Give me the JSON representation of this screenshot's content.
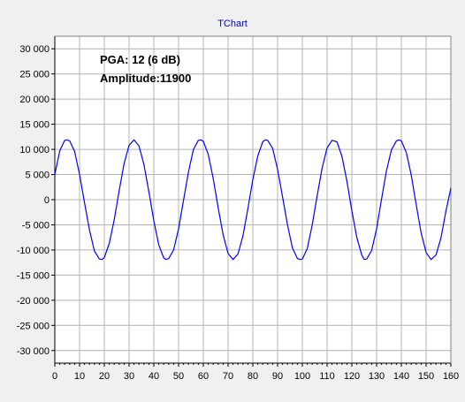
{
  "chart_data": {
    "type": "line",
    "title": "TChart",
    "annotations": [
      "PGA: 12 (6 dB)",
      "Amplitude:11900"
    ],
    "xlabel": "",
    "ylabel": "",
    "xlim": [
      0,
      160
    ],
    "ylim": [
      -32500,
      32500
    ],
    "x_ticks": [
      0,
      10,
      20,
      30,
      40,
      50,
      60,
      70,
      80,
      90,
      100,
      110,
      120,
      130,
      140,
      150,
      160
    ],
    "x_tick_labels": [
      "0",
      "10",
      "20",
      "30",
      "40",
      "50",
      "60",
      "70",
      "80",
      "90",
      "100",
      "110",
      "120",
      "130",
      "140",
      "150",
      "160"
    ],
    "y_ticks": [
      30000,
      25000,
      20000,
      15000,
      10000,
      5000,
      0,
      -5000,
      -10000,
      -15000,
      -20000,
      -25000,
      -30000
    ],
    "y_tick_labels": [
      "30 000",
      "25 000",
      "20 000",
      "15 000",
      "10 000",
      "5 000",
      "0",
      "-5 000",
      "-10 000",
      "-15 000",
      "-20 000",
      "-25 000",
      "-30 000"
    ],
    "grid": true,
    "legend": "none",
    "series": [
      {
        "color": "#0000ff",
        "x": [
          0,
          2,
          4,
          5,
          6,
          8,
          10,
          12,
          14,
          16,
          18,
          19,
          20,
          22,
          24,
          26,
          28,
          30,
          32,
          34,
          36,
          38,
          40,
          42,
          44,
          45,
          46,
          48,
          50,
          52,
          54,
          56,
          58,
          59,
          60,
          62,
          64,
          66,
          68,
          70,
          72,
          74,
          76,
          78,
          80,
          82,
          84,
          85,
          86,
          88,
          90,
          92,
          94,
          96,
          98,
          99,
          100,
          102,
          104,
          106,
          108,
          110,
          112,
          114,
          116,
          118,
          120,
          122,
          124,
          125,
          126,
          128,
          130,
          132,
          134,
          136,
          138,
          139,
          140,
          142,
          144,
          146,
          148,
          150,
          152,
          154,
          156,
          158,
          160
        ],
        "y": [
          5000,
          9700,
          11800,
          11900,
          11700,
          9600,
          5000,
          -600,
          -6000,
          -10200,
          -11800,
          -11900,
          -11500,
          -8700,
          -4000,
          1800,
          7200,
          10800,
          11900,
          10700,
          7000,
          1600,
          -4200,
          -9000,
          -11600,
          -11900,
          -11700,
          -10000,
          -5800,
          -100,
          5500,
          10000,
          11800,
          11900,
          11600,
          9000,
          4200,
          -1600,
          -7000,
          -10700,
          -11900,
          -10800,
          -7200,
          -1800,
          4000,
          8700,
          11500,
          11900,
          11800,
          10200,
          6000,
          600,
          -5000,
          -9600,
          -11700,
          -11900,
          -11800,
          -9700,
          -5000,
          800,
          6300,
          10300,
          11800,
          11500,
          8600,
          3700,
          -2200,
          -7500,
          -11000,
          -11900,
          -11800,
          -10100,
          -5800,
          100,
          5800,
          9900,
          11700,
          11900,
          11700,
          9400,
          4900,
          -1000,
          -6600,
          -10500,
          -11900,
          -11000,
          -7600,
          -2300,
          2300
        ]
      }
    ]
  }
}
